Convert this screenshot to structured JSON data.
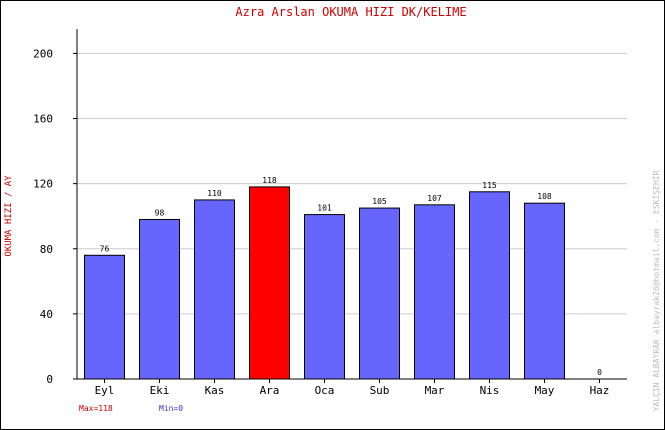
{
  "chart_data": {
    "type": "bar",
    "title": "Azra Arslan   OKUMA HIZI  DK/KELIME",
    "ylabel": "OKUMA HIZI / AY",
    "categories": [
      "Eyl",
      "Eki",
      "Kas",
      "Ara",
      "Oca",
      "Sub",
      "Mar",
      "Nis",
      "May",
      "Haz"
    ],
    "values": [
      76,
      98,
      110,
      118,
      101,
      105,
      107,
      115,
      108,
      0
    ],
    "ylim": [
      0,
      215
    ],
    "yticks": [
      0,
      40,
      80,
      120,
      160,
      200
    ],
    "grid": true,
    "highlight_index": 3,
    "max_label": "Max=118",
    "min_label": "Min=0",
    "credit": "YALÇIN ALBAYRAK  albayrak26@hotmail.com - ESKİŞEHİR"
  },
  "colors": {
    "bar": "#6666ff",
    "highlight": "#ff0000",
    "title": "#cc0000",
    "grid": "#cccccc",
    "max_text": "#cc0000",
    "min_text": "#3333cc"
  }
}
